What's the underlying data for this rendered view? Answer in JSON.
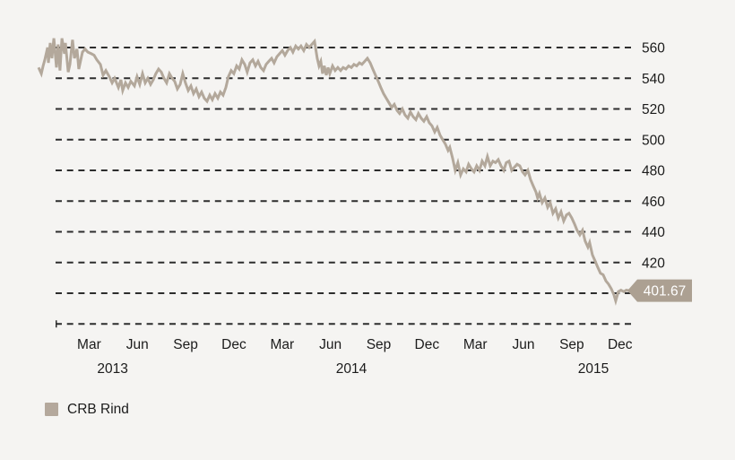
{
  "colors": {
    "background": "#f5f4f2",
    "series_line": "#b3a89b",
    "gridline": "#2d2d2d",
    "axis_text": "#1b1b1b",
    "callout_bg": "#aca092",
    "callout_text": "#ffffff",
    "legend_swatch": "#b4a89c"
  },
  "legend": {
    "label": "CRB Rind"
  },
  "callout": {
    "text": "401.67",
    "value": 401.67
  },
  "chart_data": {
    "type": "line",
    "title": "",
    "xlabel": "",
    "ylabel": "",
    "x_unit": "months since 2013-01 (0 = Jan 2013)",
    "ylim": [
      378,
      572
    ],
    "grid": "horizontal-dashed",
    "legend_position": "bottom-left",
    "y_tick_labels": [
      560,
      540,
      520,
      500,
      480,
      460,
      440,
      420
    ],
    "gridline_values": [
      560,
      540,
      520,
      500,
      480,
      460,
      440,
      420,
      400,
      380
    ],
    "x_ticks": [
      {
        "m": 2,
        "label": "Mar"
      },
      {
        "m": 5,
        "label": "Jun"
      },
      {
        "m": 8,
        "label": "Sep"
      },
      {
        "m": 11,
        "label": "Dec"
      },
      {
        "m": 14,
        "label": "Mar"
      },
      {
        "m": 17,
        "label": "Jun"
      },
      {
        "m": 20,
        "label": "Sep"
      },
      {
        "m": 23,
        "label": "Dec"
      },
      {
        "m": 26,
        "label": "Mar"
      },
      {
        "m": 29,
        "label": "Jun"
      },
      {
        "m": 32,
        "label": "Sep"
      },
      {
        "m": 35,
        "label": "Dec"
      }
    ],
    "year_labels": [
      {
        "m": 3.46,
        "label": "2013"
      },
      {
        "m": 18.3,
        "label": "2014"
      },
      {
        "m": 33.34,
        "label": "2015"
      }
    ],
    "last_value": 401.67,
    "series": [
      {
        "name": "CRB Rind",
        "points": [
          [
            -1.14,
            547
          ],
          [
            -0.97,
            543
          ],
          [
            -0.86,
            548
          ],
          [
            -0.75,
            552
          ],
          [
            -0.58,
            560
          ],
          [
            -0.53,
            550
          ],
          [
            -0.42,
            563
          ],
          [
            -0.31,
            553
          ],
          [
            -0.19,
            566
          ],
          [
            -0.03,
            547
          ],
          [
            0.08,
            562
          ],
          [
            0.19,
            545
          ],
          [
            0.31,
            566
          ],
          [
            0.47,
            556
          ],
          [
            0.53,
            563
          ],
          [
            0.7,
            544
          ],
          [
            0.81,
            549
          ],
          [
            0.97,
            565
          ],
          [
            1.09,
            553
          ],
          [
            1.25,
            559
          ],
          [
            1.36,
            546
          ],
          [
            1.59,
            557
          ],
          [
            1.75,
            559
          ],
          [
            1.92,
            557
          ],
          [
            2.14,
            556
          ],
          [
            2.31,
            555
          ],
          [
            2.48,
            552
          ],
          [
            2.7,
            549
          ],
          [
            2.87,
            542
          ],
          [
            3.04,
            545
          ],
          [
            3.26,
            541
          ],
          [
            3.43,
            537
          ],
          [
            3.59,
            540
          ],
          [
            3.82,
            534
          ],
          [
            3.98,
            539
          ],
          [
            4.09,
            532
          ],
          [
            4.26,
            537
          ],
          [
            4.43,
            534
          ],
          [
            4.59,
            538
          ],
          [
            4.82,
            535
          ],
          [
            4.98,
            541
          ],
          [
            5.15,
            536
          ],
          [
            5.32,
            543
          ],
          [
            5.49,
            537
          ],
          [
            5.65,
            540
          ],
          [
            5.82,
            536
          ],
          [
            5.99,
            539
          ],
          [
            6.15,
            543
          ],
          [
            6.32,
            546
          ],
          [
            6.49,
            544
          ],
          [
            6.65,
            540
          ],
          [
            6.82,
            537
          ],
          [
            6.99,
            543
          ],
          [
            7.16,
            540
          ],
          [
            7.32,
            538
          ],
          [
            7.49,
            533
          ],
          [
            7.66,
            536
          ],
          [
            7.82,
            543
          ],
          [
            7.99,
            537
          ],
          [
            8.16,
            532
          ],
          [
            8.33,
            535
          ],
          [
            8.49,
            530
          ],
          [
            8.66,
            533
          ],
          [
            8.83,
            528
          ],
          [
            8.99,
            531
          ],
          [
            9.16,
            527
          ],
          [
            9.33,
            525
          ],
          [
            9.5,
            529
          ],
          [
            9.66,
            526
          ],
          [
            9.83,
            530
          ],
          [
            10.0,
            527
          ],
          [
            10.16,
            531
          ],
          [
            10.33,
            529
          ],
          [
            10.5,
            534
          ],
          [
            10.66,
            541
          ],
          [
            10.83,
            545
          ],
          [
            11.0,
            543
          ],
          [
            11.17,
            548
          ],
          [
            11.33,
            546
          ],
          [
            11.5,
            552
          ],
          [
            11.67,
            549
          ],
          [
            11.83,
            544
          ],
          [
            12.0,
            550
          ],
          [
            12.17,
            552
          ],
          [
            12.34,
            548
          ],
          [
            12.5,
            551
          ],
          [
            12.67,
            547
          ],
          [
            12.84,
            545
          ],
          [
            13.0,
            549
          ],
          [
            13.17,
            551
          ],
          [
            13.34,
            553
          ],
          [
            13.5,
            550
          ],
          [
            13.67,
            554
          ],
          [
            13.84,
            556
          ],
          [
            14.01,
            558
          ],
          [
            14.17,
            555
          ],
          [
            14.34,
            558
          ],
          [
            14.51,
            560
          ],
          [
            14.67,
            557
          ],
          [
            14.84,
            561
          ],
          [
            15.01,
            559
          ],
          [
            15.17,
            561
          ],
          [
            15.34,
            558
          ],
          [
            15.51,
            562
          ],
          [
            15.68,
            560
          ],
          [
            15.84,
            562
          ],
          [
            16.01,
            564
          ],
          [
            16.18,
            553
          ],
          [
            16.29,
            548
          ],
          [
            16.4,
            551
          ],
          [
            16.51,
            543
          ],
          [
            16.62,
            548
          ],
          [
            16.74,
            542
          ],
          [
            16.85,
            547
          ],
          [
            16.96,
            543
          ],
          [
            17.13,
            548
          ],
          [
            17.29,
            545
          ],
          [
            17.46,
            547
          ],
          [
            17.63,
            545
          ],
          [
            17.79,
            547
          ],
          [
            17.96,
            546
          ],
          [
            18.13,
            548
          ],
          [
            18.3,
            547
          ],
          [
            18.46,
            549
          ],
          [
            18.63,
            548
          ],
          [
            18.8,
            550
          ],
          [
            18.96,
            549
          ],
          [
            19.13,
            551
          ],
          [
            19.3,
            553
          ],
          [
            19.47,
            550
          ],
          [
            19.63,
            546
          ],
          [
            19.8,
            542
          ],
          [
            19.97,
            538
          ],
          [
            20.13,
            534
          ],
          [
            20.3,
            530
          ],
          [
            20.47,
            527
          ],
          [
            20.64,
            524
          ],
          [
            20.8,
            521
          ],
          [
            20.97,
            523
          ],
          [
            21.14,
            519
          ],
          [
            21.3,
            517
          ],
          [
            21.47,
            520
          ],
          [
            21.64,
            516
          ],
          [
            21.81,
            514
          ],
          [
            21.97,
            518
          ],
          [
            22.14,
            515
          ],
          [
            22.31,
            513
          ],
          [
            22.47,
            517
          ],
          [
            22.64,
            514
          ],
          [
            22.81,
            512
          ],
          [
            22.98,
            515
          ],
          [
            23.14,
            511
          ],
          [
            23.31,
            509
          ],
          [
            23.48,
            505
          ],
          [
            23.64,
            508
          ],
          [
            23.81,
            503
          ],
          [
            23.98,
            500
          ],
          [
            24.15,
            497
          ],
          [
            24.31,
            493
          ],
          [
            24.42,
            495
          ],
          [
            24.59,
            488
          ],
          [
            24.76,
            480
          ],
          [
            24.92,
            485
          ],
          [
            25.09,
            477
          ],
          [
            25.26,
            481
          ],
          [
            25.43,
            479
          ],
          [
            25.59,
            484
          ],
          [
            25.76,
            481
          ],
          [
            25.93,
            479
          ],
          [
            26.09,
            483
          ],
          [
            26.26,
            480
          ],
          [
            26.43,
            486
          ],
          [
            26.6,
            483
          ],
          [
            26.76,
            489
          ],
          [
            26.93,
            483
          ],
          [
            27.1,
            486
          ],
          [
            27.26,
            485
          ],
          [
            27.43,
            487
          ],
          [
            27.6,
            483
          ],
          [
            27.77,
            480
          ],
          [
            27.93,
            485
          ],
          [
            28.1,
            486
          ],
          [
            28.27,
            480
          ],
          [
            28.43,
            482
          ],
          [
            28.6,
            484
          ],
          [
            28.77,
            483
          ],
          [
            28.94,
            479
          ],
          [
            29.1,
            477
          ],
          [
            29.27,
            480
          ],
          [
            29.44,
            474
          ],
          [
            29.6,
            470
          ],
          [
            29.77,
            466
          ],
          [
            29.88,
            462
          ],
          [
            29.99,
            465
          ],
          [
            30.16,
            459
          ],
          [
            30.33,
            462
          ],
          [
            30.5,
            456
          ],
          [
            30.66,
            459
          ],
          [
            30.83,
            452
          ],
          [
            31.0,
            455
          ],
          [
            31.16,
            449
          ],
          [
            31.33,
            453
          ],
          [
            31.5,
            447
          ],
          [
            31.67,
            451
          ],
          [
            31.83,
            452
          ],
          [
            32.0,
            449
          ],
          [
            32.17,
            445
          ],
          [
            32.33,
            441
          ],
          [
            32.5,
            438
          ],
          [
            32.67,
            441
          ],
          [
            32.83,
            434
          ],
          [
            33.0,
            430
          ],
          [
            33.11,
            433
          ],
          [
            33.28,
            425
          ],
          [
            33.45,
            421
          ],
          [
            33.61,
            417
          ],
          [
            33.78,
            413
          ],
          [
            33.95,
            412
          ],
          [
            34.12,
            408
          ],
          [
            34.28,
            406
          ],
          [
            34.45,
            403
          ],
          [
            34.62,
            399
          ],
          [
            34.73,
            395
          ],
          [
            34.89,
            401
          ],
          [
            35.06,
            402
          ],
          [
            35.23,
            401
          ],
          [
            35.39,
            402
          ],
          [
            35.56,
            401.67
          ]
        ]
      }
    ]
  }
}
